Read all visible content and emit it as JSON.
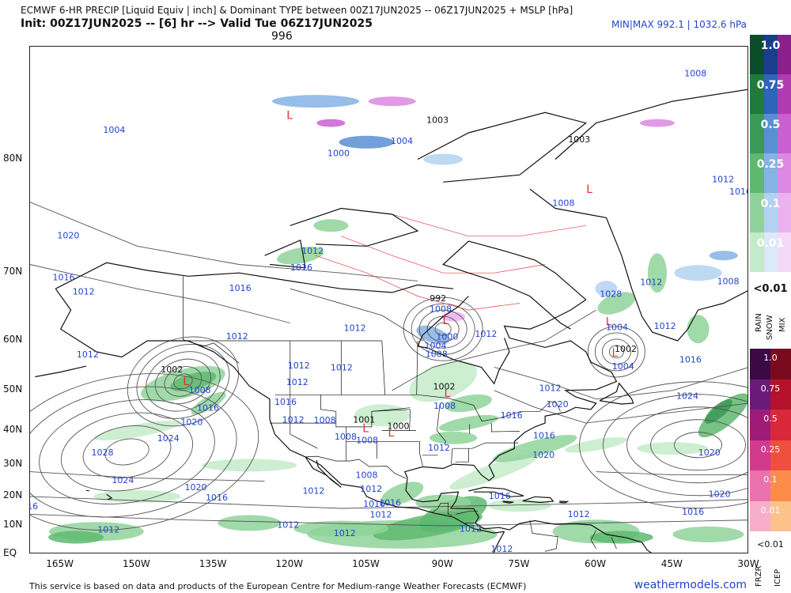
{
  "header": {
    "title_line1": "ECMWF 6-HR PRECIP [Liquid Equiv | inch] & Dominant TYPE between 00Z17JUN2025 -- 06Z17JUN2025 + MSLP [hPa]",
    "title_line2": "Init: 00Z17JUN2025 -- [6] hr --> Valid Tue 06Z17JUN2025",
    "minmax": "MIN|MAX 992.1 | 1032.6 hPa",
    "center_value": "996"
  },
  "axes": {
    "lat_labels": [
      "80N",
      "70N",
      "60N",
      "50N",
      "40N",
      "30N",
      "20N",
      "10N",
      "EQ"
    ],
    "lon_labels": [
      "165W",
      "150W",
      "135W",
      "120W",
      "105W",
      "90W",
      "75W",
      "60W",
      "45W",
      "30W"
    ]
  },
  "legend": {
    "rain_snow_mix_levels": [
      "1.0",
      "0.75",
      "0.5",
      "0.25",
      "0.1",
      "0.01"
    ],
    "rain_snow_mix_less": "<0.01",
    "rain_snow_mix_labels": [
      "RAIN",
      "SNOW",
      "MIX"
    ],
    "frzr_icep_levels": [
      "1.0",
      "0.75",
      "0.5",
      "0.25",
      "0.1",
      "0.01"
    ],
    "frzr_icep_less": "<0.01",
    "frzr_icep_labels": [
      "FRZR",
      "ICEP"
    ],
    "colors": {
      "rain": [
        "#0b4d2a",
        "#1f7a3c",
        "#3a9a55",
        "#5fb870",
        "#8fd39a",
        "#c4ebc9"
      ],
      "snow": [
        "#1b3d8f",
        "#2f64b8",
        "#5b8fd3",
        "#86b2e4",
        "#b3d2f0",
        "#dbe9f8"
      ],
      "mix": [
        "#8c1f8c",
        "#b03bb0",
        "#c95fd0",
        "#dc88e2",
        "#ebb2ef",
        "#f6d9f8"
      ],
      "frzr": [
        "#3b0a45",
        "#6a1b7a",
        "#a01a78",
        "#d23a8e",
        "#ea72ac",
        "#f7aecb"
      ],
      "icep": [
        "#7a0a1e",
        "#b3122a",
        "#d8283a",
        "#f04e3e",
        "#fb8c4a",
        "#fdc18a"
      ]
    }
  },
  "map": {
    "pressure_labels_blue": [
      {
        "t": "1004",
        "lon": -154.5,
        "lat": 81.5
      },
      {
        "t": "1000",
        "lon": -110.5,
        "lat": 80.2
      },
      {
        "t": "1012",
        "lon": -115.6,
        "lat": 72.2
      },
      {
        "t": "1016",
        "lon": -117.8,
        "lat": 70.3
      },
      {
        "t": "1020",
        "lon": -163.5,
        "lat": 73.8
      },
      {
        "t": "1016",
        "lon": -164.4,
        "lat": 69.1
      },
      {
        "t": "1012",
        "lon": -160.5,
        "lat": 67.2
      },
      {
        "t": "1016",
        "lon": -129.8,
        "lat": 67.7
      },
      {
        "t": "1012",
        "lon": -130.4,
        "lat": 60.3
      },
      {
        "t": "1012",
        "lon": -159.7,
        "lat": 56.9
      },
      {
        "t": "1012",
        "lon": -107.3,
        "lat": 61.7
      },
      {
        "t": "1012",
        "lon": -118.3,
        "lat": 54.7
      },
      {
        "t": "1012",
        "lon": -118.6,
        "lat": 51.2
      },
      {
        "t": "1008",
        "lon": -137.7,
        "lat": 49.4
      },
      {
        "t": "1016",
        "lon": -136.1,
        "lat": 45.2
      },
      {
        "t": "1020",
        "lon": -139.3,
        "lat": 41.5
      },
      {
        "t": "1024",
        "lon": -143.9,
        "lat": 37.1
      },
      {
        "t": "1028",
        "lon": -156.8,
        "lat": 32.9
      },
      {
        "t": "1024",
        "lon": -152.8,
        "lat": 24.4
      },
      {
        "t": "1020",
        "lon": -138.5,
        "lat": 22.1
      },
      {
        "t": "1016",
        "lon": -134.4,
        "lat": 18.7
      },
      {
        "t": "1016",
        "lon": -171.6,
        "lat": 15.7
      },
      {
        "t": "1012",
        "lon": -155.6,
        "lat": 7.6
      },
      {
        "t": "1012",
        "lon": -120.4,
        "lat": 9.3
      },
      {
        "t": "1012",
        "lon": -109.3,
        "lat": 6.4
      },
      {
        "t": "1012",
        "lon": -109.9,
        "lat": 54.3
      },
      {
        "t": "1016",
        "lon": -120.9,
        "lat": 46.6
      },
      {
        "t": "1012",
        "lon": -119.4,
        "lat": 42.1
      },
      {
        "t": "1008",
        "lon": -113.2,
        "lat": 42.0
      },
      {
        "t": "1008",
        "lon": -109.1,
        "lat": 37.5
      },
      {
        "t": "1008",
        "lon": -104.9,
        "lat": 36.5
      },
      {
        "t": "1008",
        "lon": -105.0,
        "lat": 26.0
      },
      {
        "t": "1012",
        "lon": -115.4,
        "lat": 20.9
      },
      {
        "t": "1012",
        "lon": -104.1,
        "lat": 21.6
      },
      {
        "t": "1016",
        "lon": -103.5,
        "lat": 16.5
      },
      {
        "t": "1016",
        "lon": -100.4,
        "lat": 16.9
      },
      {
        "t": "1012",
        "lon": -102.2,
        "lat": 12.9
      },
      {
        "t": "1008",
        "lon": -90.5,
        "lat": 64.7
      },
      {
        "t": "1004",
        "lon": -91.5,
        "lat": 58.6
      },
      {
        "t": "1008",
        "lon": -91.3,
        "lat": 57.0
      },
      {
        "t": "1000",
        "lon": -89.2,
        "lat": 60.2
      },
      {
        "t": "1012",
        "lon": -81.6,
        "lat": 60.7
      },
      {
        "t": "1008",
        "lon": -89.7,
        "lat": 45.6
      },
      {
        "t": "1012",
        "lon": -90.8,
        "lat": 34.3
      },
      {
        "t": "1012",
        "lon": -69.0,
        "lat": 49.9
      },
      {
        "t": "1020",
        "lon": -67.6,
        "lat": 46.0
      },
      {
        "t": "1016",
        "lon": -76.6,
        "lat": 43.3
      },
      {
        "t": "1016",
        "lon": -70.2,
        "lat": 37.8
      },
      {
        "t": "1020",
        "lon": -70.3,
        "lat": 32.3
      },
      {
        "t": "1020",
        "lon": -37.8,
        "lat": 33.0
      },
      {
        "t": "1016",
        "lon": -78.9,
        "lat": 19.2
      },
      {
        "t": "1020",
        "lon": -35.8,
        "lat": 19.8
      },
      {
        "t": "1016",
        "lon": -41.0,
        "lat": 13.9
      },
      {
        "t": "1012",
        "lon": -84.6,
        "lat": 8.0
      },
      {
        "t": "1012",
        "lon": -78.5,
        "lat": 0.9
      },
      {
        "t": "1012",
        "lon": -63.4,
        "lat": 13.0
      },
      {
        "t": "1004",
        "lon": -98.1,
        "lat": 80.9
      },
      {
        "t": "1008",
        "lon": -66.4,
        "lat": 76.7
      },
      {
        "t": "1008",
        "lon": -40.5,
        "lat": 84.0
      },
      {
        "t": "1012",
        "lon": -35.1,
        "lat": 78.5
      },
      {
        "t": "1016",
        "lon": -31.7,
        "lat": 77.6
      },
      {
        "t": "1012",
        "lon": -49.2,
        "lat": 68.5
      },
      {
        "t": "1008",
        "lon": -34.1,
        "lat": 68.6
      },
      {
        "t": "1028",
        "lon": -57.1,
        "lat": 66.9
      },
      {
        "t": "1004",
        "lon": -55.9,
        "lat": 61.8
      },
      {
        "t": "1012",
        "lon": -46.5,
        "lat": 62.0
      },
      {
        "t": "1016",
        "lon": -41.5,
        "lat": 55.9
      },
      {
        "t": "1004",
        "lon": -54.7,
        "lat": 54.6
      },
      {
        "t": "1024",
        "lon": -42.1,
        "lat": 48.0
      }
    ],
    "pressure_labels_black": [
      {
        "t": "1003",
        "lon": -91.1,
        "lat": 82.0
      },
      {
        "t": "1003",
        "lon": -63.3,
        "lat": 81.0
      },
      {
        "t": "992",
        "lon": -91.0,
        "lat": 66.3
      },
      {
        "t": "1002",
        "lon": -143.2,
        "lat": 53.9
      },
      {
        "t": "1002",
        "lon": -89.8,
        "lat": 50.2
      },
      {
        "t": "1001",
        "lon": -105.5,
        "lat": 42.1
      },
      {
        "t": "1000",
        "lon": -98.8,
        "lat": 40.4
      },
      {
        "t": "1002",
        "lon": -54.2,
        "lat": 58.0
      }
    ],
    "low_markers": [
      {
        "lon": -120.1,
        "lat": 82.2
      },
      {
        "lon": -89.5,
        "lat": 62.8
      },
      {
        "lon": -140.4,
        "lat": 51.2
      },
      {
        "lon": -89.2,
        "lat": 48.5
      },
      {
        "lon": -105.2,
        "lat": 39.6
      },
      {
        "lon": -100.2,
        "lat": 38.4
      },
      {
        "lon": -61.3,
        "lat": 77.7
      },
      {
        "lon": -57.5,
        "lat": 62.6
      },
      {
        "lon": -56.3,
        "lat": 57.1
      }
    ]
  }
}
